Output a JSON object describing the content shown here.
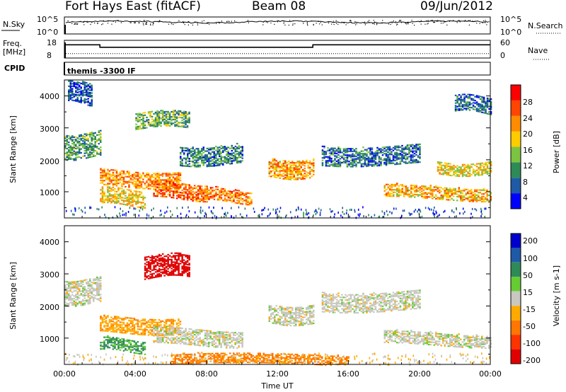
{
  "header": {
    "title": "Fort Hays East (fitACF)",
    "beam": "Beam 08",
    "date": "09/Jun/2012"
  },
  "sky_panel": {
    "left_label": "N.Sky",
    "left_ticks": [
      "10^5",
      "10^0"
    ],
    "right_label": "N.Search",
    "right_ticks": [
      "10^5",
      "10^0"
    ]
  },
  "freq_panel": {
    "left_label_line1": "Freq.",
    "left_label_line2": "[MHz]",
    "left_ticks": [
      "18",
      "8"
    ],
    "right_label": "Nave",
    "right_ticks": [
      "60",
      "0"
    ],
    "freq_steps_mhz": [
      {
        "t0": 0,
        "t1": 2,
        "value": 12
      },
      {
        "t0": 2,
        "t1": 14,
        "value": 10.6
      },
      {
        "t0": 14,
        "t1": 24,
        "value": 12
      }
    ],
    "nave_level": 15
  },
  "cpid_panel": {
    "label": "CPID",
    "program": "themis -3300 IF"
  },
  "time_axis": {
    "label": "Time UT",
    "ticks": [
      "00:00",
      "04:00",
      "08:00",
      "12:00",
      "16:00",
      "20:00",
      "00:00"
    ]
  },
  "power_panel": {
    "ylabel": "Slant Range [km]",
    "yticks": [
      "4000",
      "3000",
      "2000",
      "1000"
    ],
    "colorbar_label": "Power [dB]",
    "colorbar_ticks": [
      "28",
      "24",
      "20",
      "16",
      "12",
      "8",
      "4"
    ],
    "colors": [
      "#0000ff",
      "#1f5aa6",
      "#2e8b57",
      "#7dc342",
      "#ffcc00",
      "#ff8c00",
      "#ff4500",
      "#ff0000"
    ]
  },
  "velocity_panel": {
    "ylabel": "Slant Range [km]",
    "yticks": [
      "4000",
      "3000",
      "2000",
      "1000"
    ],
    "colorbar_label": "Velocity [m s-1]",
    "colorbar_ticks": [
      "200",
      "100",
      "50",
      "15",
      "-15",
      "-50",
      "-100",
      "-200"
    ],
    "colors": [
      "#0000cc",
      "#1f5aa6",
      "#2e8b57",
      "#66cc33",
      "#c8c8c0",
      "#ffaa00",
      "#ff7700",
      "#ff3300",
      "#e00000"
    ]
  },
  "chart_data": [
    {
      "type": "heatmap",
      "title": "Power",
      "xlabel": "Time UT",
      "ylabel": "Slant Range [km]",
      "xlim_hours": [
        0,
        24
      ],
      "ylim": [
        180,
        4500
      ],
      "colorbar": {
        "label": "Power [dB]",
        "range": [
          0,
          32
        ]
      },
      "echo_bands": [
        {
          "t0": 0.0,
          "t1": 2.0,
          "r0": 2100,
          "r1": 2900,
          "db": 11
        },
        {
          "t0": 0.2,
          "t1": 1.5,
          "r0": 3800,
          "r1": 4500,
          "db": 6
        },
        {
          "t0": 2.0,
          "t1": 6.5,
          "r0": 1200,
          "r1": 1700,
          "db": 22
        },
        {
          "t0": 2.0,
          "t1": 4.5,
          "r0": 600,
          "r1": 1100,
          "db": 18
        },
        {
          "t0": 4.0,
          "t1": 7.0,
          "r0": 3000,
          "r1": 3500,
          "db": 12
        },
        {
          "t0": 5.0,
          "t1": 8.0,
          "r0": 800,
          "r1": 1300,
          "db": 24
        },
        {
          "t0": 6.5,
          "t1": 10.0,
          "r0": 1900,
          "r1": 2500,
          "db": 9
        },
        {
          "t0": 8.0,
          "t1": 10.5,
          "r0": 700,
          "r1": 1100,
          "db": 23
        },
        {
          "t0": 11.5,
          "t1": 14.0,
          "r0": 1500,
          "r1": 2100,
          "db": 21
        },
        {
          "t0": 14.5,
          "t1": 20.0,
          "r0": 1900,
          "r1": 2500,
          "db": 8
        },
        {
          "t0": 18.0,
          "t1": 24.0,
          "r0": 800,
          "r1": 1200,
          "db": 20
        },
        {
          "t0": 21.0,
          "t1": 24.0,
          "r0": 1600,
          "r1": 2000,
          "db": 18
        },
        {
          "t0": 22.0,
          "t1": 24.0,
          "r0": 3500,
          "r1": 4000,
          "db": 7
        }
      ]
    },
    {
      "type": "heatmap",
      "title": "Velocity",
      "xlabel": "Time UT",
      "ylabel": "Slant Range [km]",
      "xlim_hours": [
        0,
        24
      ],
      "ylim": [
        180,
        4500
      ],
      "colorbar": {
        "label": "Velocity [m s-1]",
        "range": [
          -250,
          250
        ]
      },
      "echo_bands": [
        {
          "t0": 0.0,
          "t1": 2.0,
          "r0": 2100,
          "r1": 2900,
          "v": 0
        },
        {
          "t0": 2.0,
          "t1": 6.5,
          "r0": 1200,
          "r1": 1700,
          "v": -40
        },
        {
          "t0": 4.5,
          "t1": 7.0,
          "r0": 2900,
          "r1": 3600,
          "v": -220
        },
        {
          "t0": 5.0,
          "t1": 10.0,
          "r0": 800,
          "r1": 1300,
          "v": 0
        },
        {
          "t0": 2.0,
          "t1": 4.5,
          "r0": 600,
          "r1": 1000,
          "v": 60
        },
        {
          "t0": 11.5,
          "t1": 14.0,
          "r0": 1500,
          "r1": 2100,
          "v": 0
        },
        {
          "t0": 14.5,
          "t1": 20.0,
          "r0": 1900,
          "r1": 2500,
          "v": 0
        },
        {
          "t0": 18.0,
          "t1": 24.0,
          "r0": 800,
          "r1": 1200,
          "v": 0
        },
        {
          "t0": 6.0,
          "t1": 16.0,
          "r0": 180,
          "r1": 500,
          "v": -60
        }
      ]
    }
  ]
}
